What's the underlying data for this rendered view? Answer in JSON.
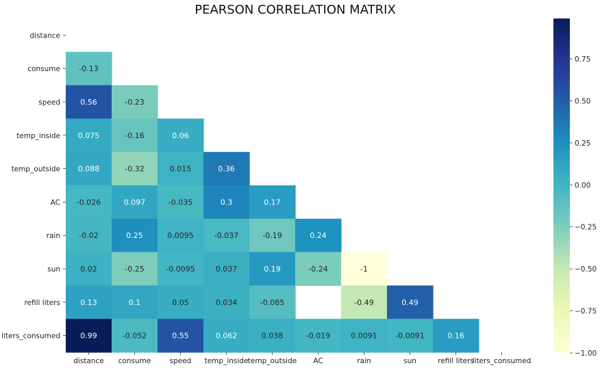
{
  "chart_data": {
    "type": "heatmap",
    "title": "PEARSON CORRELATION MATRIX",
    "xlabel": "",
    "ylabel": "",
    "mask": "upper triangle including diagonal",
    "variables": [
      "distance",
      "consume",
      "speed",
      "temp_inside",
      "temp_outside",
      "AC",
      "rain",
      "sun",
      "refill liters",
      "liters_consumed"
    ],
    "x_tick_labels": [
      "distance",
      "consume",
      "speed",
      "temp_inside",
      "temp_outside",
      "AC",
      "rain",
      "sun",
      "refill liters",
      "liters_consumed"
    ],
    "y_tick_labels": [
      "distance",
      "consume",
      "speed",
      "temp_inside",
      "temp_outside",
      "AC",
      "rain",
      "sun",
      "refill liters",
      "liters_consumed"
    ],
    "cells": [
      {
        "row": "consume",
        "col": "distance",
        "value": -0.13,
        "label": "-0.13"
      },
      {
        "row": "speed",
        "col": "distance",
        "value": 0.56,
        "label": "0.56"
      },
      {
        "row": "speed",
        "col": "consume",
        "value": -0.23,
        "label": "-0.23"
      },
      {
        "row": "temp_inside",
        "col": "distance",
        "value": 0.075,
        "label": "0.075"
      },
      {
        "row": "temp_inside",
        "col": "consume",
        "value": -0.16,
        "label": "-0.16"
      },
      {
        "row": "temp_inside",
        "col": "speed",
        "value": 0.06,
        "label": "0.06"
      },
      {
        "row": "temp_outside",
        "col": "distance",
        "value": 0.088,
        "label": "0.088"
      },
      {
        "row": "temp_outside",
        "col": "consume",
        "value": -0.32,
        "label": "-0.32"
      },
      {
        "row": "temp_outside",
        "col": "speed",
        "value": 0.015,
        "label": "0.015"
      },
      {
        "row": "temp_outside",
        "col": "temp_inside",
        "value": 0.36,
        "label": "0.36"
      },
      {
        "row": "AC",
        "col": "distance",
        "value": -0.026,
        "label": "-0.026"
      },
      {
        "row": "AC",
        "col": "consume",
        "value": 0.097,
        "label": "0.097"
      },
      {
        "row": "AC",
        "col": "speed",
        "value": -0.035,
        "label": "-0.035"
      },
      {
        "row": "AC",
        "col": "temp_inside",
        "value": 0.3,
        "label": "0.3"
      },
      {
        "row": "AC",
        "col": "temp_outside",
        "value": 0.17,
        "label": "0.17"
      },
      {
        "row": "rain",
        "col": "distance",
        "value": -0.02,
        "label": "-0.02"
      },
      {
        "row": "rain",
        "col": "consume",
        "value": 0.25,
        "label": "0.25"
      },
      {
        "row": "rain",
        "col": "speed",
        "value": 0.0095,
        "label": "0.0095"
      },
      {
        "row": "rain",
        "col": "temp_inside",
        "value": -0.037,
        "label": "-0.037"
      },
      {
        "row": "rain",
        "col": "temp_outside",
        "value": -0.19,
        "label": "-0.19"
      },
      {
        "row": "rain",
        "col": "AC",
        "value": 0.24,
        "label": "0.24"
      },
      {
        "row": "sun",
        "col": "distance",
        "value": 0.02,
        "label": "0.02"
      },
      {
        "row": "sun",
        "col": "consume",
        "value": -0.25,
        "label": "-0.25"
      },
      {
        "row": "sun",
        "col": "speed",
        "value": -0.0095,
        "label": "-0.0095"
      },
      {
        "row": "sun",
        "col": "temp_inside",
        "value": 0.037,
        "label": "0.037"
      },
      {
        "row": "sun",
        "col": "temp_outside",
        "value": 0.19,
        "label": "0.19"
      },
      {
        "row": "sun",
        "col": "AC",
        "value": -0.24,
        "label": "-0.24"
      },
      {
        "row": "sun",
        "col": "rain",
        "value": -1,
        "label": "-1"
      },
      {
        "row": "refill liters",
        "col": "distance",
        "value": 0.13,
        "label": "0.13"
      },
      {
        "row": "refill liters",
        "col": "consume",
        "value": 0.1,
        "label": "0.1"
      },
      {
        "row": "refill liters",
        "col": "speed",
        "value": 0.05,
        "label": "0.05"
      },
      {
        "row": "refill liters",
        "col": "temp_inside",
        "value": 0.034,
        "label": "0.034"
      },
      {
        "row": "refill liters",
        "col": "temp_outside",
        "value": -0.085,
        "label": "-0.085"
      },
      {
        "row": "refill liters",
        "col": "rain",
        "value": -0.49,
        "label": "-0.49"
      },
      {
        "row": "refill liters",
        "col": "sun",
        "value": 0.49,
        "label": "0.49"
      },
      {
        "row": "liters_consumed",
        "col": "distance",
        "value": 0.99,
        "label": "0.99"
      },
      {
        "row": "liters_consumed",
        "col": "consume",
        "value": -0.052,
        "label": "-0.052"
      },
      {
        "row": "liters_consumed",
        "col": "speed",
        "value": 0.55,
        "label": "0.55"
      },
      {
        "row": "liters_consumed",
        "col": "temp_inside",
        "value": 0.062,
        "label": "0.062"
      },
      {
        "row": "liters_consumed",
        "col": "temp_outside",
        "value": 0.038,
        "label": "0.038"
      },
      {
        "row": "liters_consumed",
        "col": "AC",
        "value": -0.019,
        "label": "-0.019"
      },
      {
        "row": "liters_consumed",
        "col": "rain",
        "value": 0.0091,
        "label": "0.0091"
      },
      {
        "row": "liters_consumed",
        "col": "sun",
        "value": -0.0091,
        "label": "-0.0091"
      },
      {
        "row": "liters_consumed",
        "col": "refill liters",
        "value": 0.16,
        "label": "0.16"
      }
    ],
    "colorbar": {
      "colormap": "YlGnBu",
      "vmin": -1.0,
      "vmax": 0.99,
      "ticks": [
        -1.0,
        -0.75,
        -0.5,
        -0.25,
        0.0,
        0.25,
        0.5,
        0.75
      ],
      "tick_labels": [
        "−1.00",
        "−0.75",
        "−0.50",
        "−0.25",
        "0.00",
        "0.25",
        "0.50",
        "0.75"
      ]
    }
  }
}
